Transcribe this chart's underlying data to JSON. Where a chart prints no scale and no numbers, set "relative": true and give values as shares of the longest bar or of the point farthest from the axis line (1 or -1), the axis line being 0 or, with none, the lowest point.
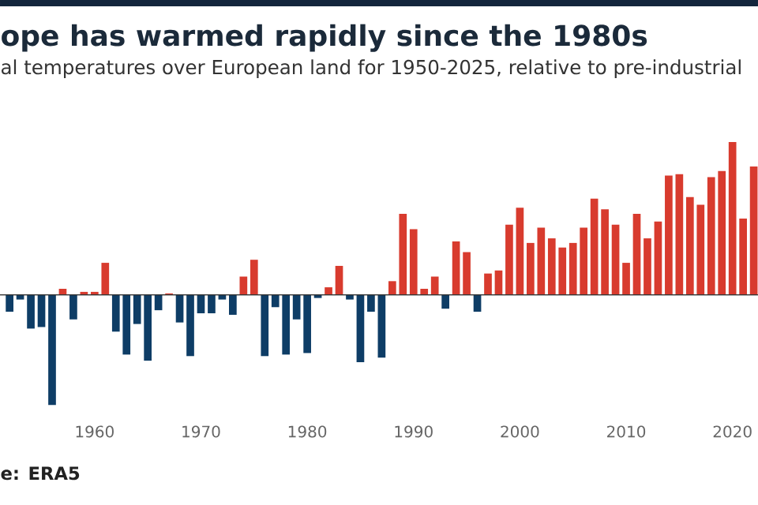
{
  "chart_data": {
    "type": "bar",
    "title": "ope has warmed rapidly since the 1980s",
    "subtitle": "al temperatures over European land for 1950-2025, relative to pre-industrial",
    "annotations": [
      "e: ERA5"
    ],
    "relative": true,
    "x": [
      1952,
      1953,
      1954,
      1955,
      1956,
      1957,
      1958,
      1959,
      1960,
      1961,
      1962,
      1963,
      1964,
      1965,
      1966,
      1967,
      1968,
      1969,
      1970,
      1971,
      1972,
      1973,
      1974,
      1975,
      1976,
      1977,
      1978,
      1979,
      1980,
      1981,
      1982,
      1983,
      1984,
      1985,
      1986,
      1987,
      1988,
      1989,
      1990,
      1991,
      1992,
      1993,
      1994,
      1995,
      1996,
      1997,
      1998,
      1999,
      2000,
      2001,
      2002,
      2003,
      2004,
      2005,
      2006,
      2007,
      2008,
      2009,
      2010,
      2011,
      2012,
      2013,
      2014,
      2015,
      2016,
      2017,
      2018,
      2019,
      2020,
      2021,
      2022
    ],
    "values": [
      -0.11,
      -0.03,
      -0.22,
      -0.21,
      -0.72,
      0.04,
      -0.16,
      0.02,
      0.02,
      0.21,
      -0.24,
      -0.39,
      -0.19,
      -0.43,
      -0.1,
      0.01,
      -0.18,
      -0.4,
      -0.12,
      -0.12,
      -0.03,
      -0.13,
      0.12,
      0.23,
      -0.4,
      -0.08,
      -0.39,
      -0.16,
      -0.38,
      -0.02,
      0.05,
      0.19,
      -0.03,
      -0.44,
      -0.11,
      -0.41,
      0.09,
      0.53,
      0.43,
      0.04,
      0.12,
      -0.09,
      0.35,
      0.28,
      -0.11,
      0.14,
      0.16,
      0.46,
      0.57,
      0.34,
      0.44,
      0.37,
      0.31,
      0.34,
      0.44,
      0.63,
      0.56,
      0.46,
      0.21,
      0.53,
      0.37,
      0.48,
      0.78,
      0.79,
      0.64,
      0.59,
      0.77,
      0.81,
      1.0,
      0.5,
      0.84
    ],
    "colors": [
      "#0e3d66",
      "#0e3d66",
      "#0e3d66",
      "#0e3d66",
      "#0e3d66",
      "#d83b2e",
      "#0e3d66",
      "#d83b2e",
      "#d83b2e",
      "#d83b2e",
      "#0e3d66",
      "#0e3d66",
      "#0e3d66",
      "#0e3d66",
      "#0e3d66",
      "#d83b2e",
      "#0e3d66",
      "#0e3d66",
      "#0e3d66",
      "#0e3d66",
      "#0e3d66",
      "#0e3d66",
      "#d83b2e",
      "#d83b2e",
      "#0e3d66",
      "#0e3d66",
      "#0e3d66",
      "#0e3d66",
      "#0e3d66",
      "#0e3d66",
      "#d83b2e",
      "#d83b2e",
      "#0e3d66",
      "#0e3d66",
      "#0e3d66",
      "#0e3d66",
      "#d83b2e",
      "#d83b2e",
      "#d83b2e",
      "#d83b2e",
      "#d83b2e",
      "#0e3d66",
      "#d83b2e",
      "#d83b2e",
      "#0e3d66",
      "#d83b2e",
      "#d83b2e",
      "#d83b2e",
      "#d83b2e",
      "#d83b2e",
      "#d83b2e",
      "#d83b2e",
      "#d83b2e",
      "#d83b2e",
      "#d83b2e",
      "#d83b2e",
      "#d83b2e",
      "#d83b2e",
      "#d83b2e",
      "#d83b2e",
      "#d83b2e",
      "#d83b2e",
      "#d83b2e",
      "#d83b2e",
      "#d83b2e",
      "#d83b2e",
      "#d83b2e",
      "#d83b2e",
      "#d83b2e",
      "#d83b2e",
      "#d83b2e"
    ],
    "xlim": [
      1951.1,
      2022.4
    ],
    "xticks": [
      1960,
      1970,
      1980,
      1990,
      2000,
      2010,
      2020
    ]
  }
}
